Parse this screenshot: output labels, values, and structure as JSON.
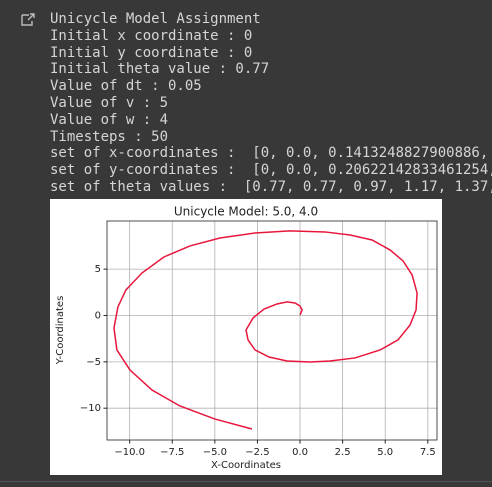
{
  "output": {
    "lines": [
      "Unicycle Model Assignment",
      "Initial x coordinate : 0",
      "Initial y coordinate : 0",
      "Initial theta value : 0.77",
      "Value of dt : 0.05",
      "Value of v : 5",
      "Value of w : 4",
      "Timesteps : 50",
      "set of x-coordinates :  [0, 0.0, 0.1413248827900886,",
      "set of y-coordinates :  [0, 0.0, 0.20622142833461254,",
      "set of theta values :  [0.77, 0.77, 0.97, 1.17, 1.37,"
    ]
  },
  "chart_data": {
    "type": "line",
    "title": "Unicycle Model: 5.0, 4.0",
    "xlabel": "X-Coordinates",
    "ylabel": "Y-Coordinates",
    "x": [
      0,
      0.12,
      0,
      -0.29,
      -0.76,
      -1.35,
      -2.11,
      -2.76,
      -3.17,
      -3.05,
      -2.64,
      -1.82,
      -0.76,
      0.59,
      1.76,
      3.23,
      4.7,
      5.75,
      6.46,
      6.81,
      6.87,
      6.58,
      6.05,
      5.28,
      4.23,
      2.94,
      1.47,
      -0.59,
      -2.64,
      -4.7,
      -6.46,
      -7.99,
      -9.28,
      -10.22,
      -10.69,
      -10.92,
      -10.75,
      -9.98,
      -8.69,
      -7.05,
      -4.99,
      -2.82
    ],
    "series": [
      {
        "color": "#e8163c",
        "values": [
          0.05,
          0.59,
          1.02,
          1.35,
          1.46,
          1.24,
          0.7,
          -0.27,
          -1.56,
          -2.64,
          -3.72,
          -4.48,
          -4.91,
          -5.02,
          -4.91,
          -4.58,
          -3.72,
          -2.64,
          -1.02,
          0.59,
          2.43,
          4.37,
          5.88,
          7.07,
          8.14,
          8.68,
          9.01,
          9.12,
          8.9,
          8.36,
          7.5,
          6.31,
          4.58,
          2.75,
          0.92,
          -1.35,
          -3.72,
          -5.88,
          -8.04,
          -9.76,
          -11.17,
          -12.24
        ]
      }
    ],
    "xlim": [
      -11.33,
      8.04
    ],
    "ylim": [
      -13.43,
      10.19
    ],
    "xticks": [
      {
        "value": -10,
        "label": "−10.0"
      },
      {
        "value": -7.5,
        "label": "−7.5"
      },
      {
        "value": -5,
        "label": "−5.0"
      },
      {
        "value": -2.5,
        "label": "−2.5"
      },
      {
        "value": 0,
        "label": "0.0"
      },
      2.5,
      {
        "value": 5,
        "label": "5.0"
      },
      7.5
    ],
    "yticks": [
      {
        "value": -10,
        "label": "−10"
      },
      {
        "value": -5,
        "label": "−5"
      },
      0,
      5
    ],
    "grid": true
  }
}
